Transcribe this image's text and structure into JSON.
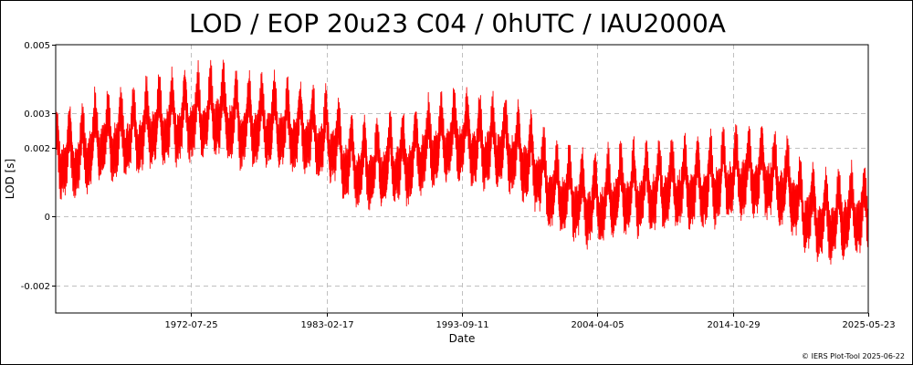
{
  "chart_data": {
    "type": "line",
    "title": "LOD / EOP 20u23 C04 / 0hUTC / IAU2000A",
    "xlabel": "Date",
    "ylabel": "LOD [s]",
    "x_range": [
      "1962-01-01",
      "2025-05-23"
    ],
    "ylim": [
      -0.0028,
      0.005
    ],
    "x_ticks": [
      "1972-07-25",
      "1983-02-17",
      "1993-09-11",
      "2004-04-05",
      "2014-10-29",
      "2025-05-23"
    ],
    "y_ticks": [
      {
        "value": 0.005,
        "label": "0.005"
      },
      {
        "value": 0.003,
        "label": "0.003"
      },
      {
        "value": 0.002,
        "label": "0.002"
      },
      {
        "value": 0,
        "label": "0"
      },
      {
        "value": -0.002,
        "label": "-0.002"
      }
    ],
    "grid": true,
    "series": [
      {
        "color": "#ff0000",
        "trend": [
          {
            "date": "1962-01-01",
            "value": 0.0017
          },
          {
            "date": "1963-06-01",
            "value": 0.0018
          },
          {
            "date": "1966-01-01",
            "value": 0.0022
          },
          {
            "date": "1968-01-01",
            "value": 0.0024
          },
          {
            "date": "1970-01-01",
            "value": 0.0026
          },
          {
            "date": "1972-07-25",
            "value": 0.0029
          },
          {
            "date": "1975-01-01",
            "value": 0.0029
          },
          {
            "date": "1977-01-01",
            "value": 0.0027
          },
          {
            "date": "1979-01-01",
            "value": 0.0026
          },
          {
            "date": "1981-01-01",
            "value": 0.0025
          },
          {
            "date": "1983-02-17",
            "value": 0.0022
          },
          {
            "date": "1985-01-01",
            "value": 0.0016
          },
          {
            "date": "1987-01-01",
            "value": 0.0014
          },
          {
            "date": "1989-01-01",
            "value": 0.0016
          },
          {
            "date": "1991-01-01",
            "value": 0.002
          },
          {
            "date": "1993-09-11",
            "value": 0.0023
          },
          {
            "date": "1996-01-01",
            "value": 0.002
          },
          {
            "date": "1998-01-01",
            "value": 0.0019
          },
          {
            "date": "1999-01-01",
            "value": 0.0016
          },
          {
            "date": "2001-01-01",
            "value": 0.0007
          },
          {
            "date": "2004-04-05",
            "value": 0.0004
          },
          {
            "date": "2006-01-01",
            "value": 0.0006
          },
          {
            "date": "2008-01-01",
            "value": 0.0008
          },
          {
            "date": "2010-01-01",
            "value": 0.0008
          },
          {
            "date": "2012-01-01",
            "value": 0.0009
          },
          {
            "date": "2014-10-29",
            "value": 0.0011
          },
          {
            "date": "2017-01-01",
            "value": 0.0013
          },
          {
            "date": "2019-01-01",
            "value": 0.0008
          },
          {
            "date": "2020-06-01",
            "value": 0.0002
          },
          {
            "date": "2022-06-01",
            "value": -0.0001
          },
          {
            "date": "2025-05-23",
            "value": 0.0001
          }
        ],
        "seasonal_amplitude": 0.0006
      }
    ]
  },
  "credit": "© IERS Plot-Tool 2025-06-22"
}
